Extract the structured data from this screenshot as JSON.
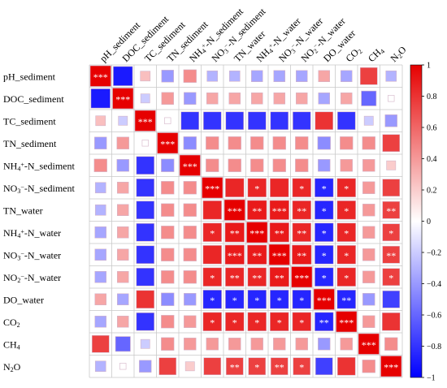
{
  "chart_data": {
    "type": "heatmap",
    "variables": [
      "pH_sediment",
      "DOC_sediment",
      "TC_sediment",
      "TN_sediment",
      "NH4+-N_sediment",
      "NO3−-N_sediment",
      "TN_water",
      "NH4+-N_water",
      "NO3−-N_water",
      "NO2−-N_water",
      "DO_water",
      "CO2",
      "CH4",
      "N2O"
    ],
    "row_labels": [
      [
        {
          "t": "pH_sediment"
        }
      ],
      [
        {
          "t": "DOC_sediment"
        }
      ],
      [
        {
          "t": "TC_sediment"
        }
      ],
      [
        {
          "t": "TN_sediment"
        }
      ],
      [
        {
          "t": "NH"
        },
        {
          "t": "4",
          "sub": true
        },
        {
          "t": "+",
          "sup": true
        },
        {
          "t": "-N_sediment"
        }
      ],
      [
        {
          "t": "NO"
        },
        {
          "t": "3",
          "sub": true
        },
        {
          "t": "−",
          "sup": true
        },
        {
          "t": "-N_sediment"
        }
      ],
      [
        {
          "t": "TN_water"
        }
      ],
      [
        {
          "t": "NH"
        },
        {
          "t": "4",
          "sub": true
        },
        {
          "t": "+",
          "sup": true
        },
        {
          "t": "-N_water"
        }
      ],
      [
        {
          "t": "NO"
        },
        {
          "t": "3",
          "sub": true
        },
        {
          "t": "−",
          "sup": true
        },
        {
          "t": "-N_water"
        }
      ],
      [
        {
          "t": "NO"
        },
        {
          "t": "2",
          "sub": true
        },
        {
          "t": "−",
          "sup": true
        },
        {
          "t": "-N_water"
        }
      ],
      [
        {
          "t": "DO_water"
        }
      ],
      [
        {
          "t": "CO"
        },
        {
          "t": "2",
          "sub": true
        }
      ],
      [
        {
          "t": "CH"
        },
        {
          "t": "4",
          "sub": true
        }
      ],
      [
        {
          "t": "N"
        },
        {
          "t": "2",
          "sub": true
        },
        {
          "t": "O"
        }
      ]
    ],
    "col_labels": [
      [
        {
          "t": "pH_sediment"
        }
      ],
      [
        {
          "t": "DOC_sediment"
        }
      ],
      [
        {
          "t": "TC_sediment"
        }
      ],
      [
        {
          "t": "TN_sediment"
        }
      ],
      [
        {
          "t": "NH"
        },
        {
          "t": "4",
          "sub": true
        },
        {
          "t": "+",
          "sup": true
        },
        {
          "t": "-N_sediment"
        }
      ],
      [
        {
          "t": "NO"
        },
        {
          "t": "3",
          "sub": true
        },
        {
          "t": "−",
          "sup": true
        },
        {
          "t": "-N_sediment"
        }
      ],
      [
        {
          "t": "TN_water"
        }
      ],
      [
        {
          "t": "NH"
        },
        {
          "t": "4",
          "sub": true
        },
        {
          "t": "+",
          "sup": true
        },
        {
          "t": "-N_water"
        }
      ],
      [
        {
          "t": "NO"
        },
        {
          "t": "3",
          "sub": true
        },
        {
          "t": "−",
          "sup": true
        },
        {
          "t": "-N_water"
        }
      ],
      [
        {
          "t": "NO"
        },
        {
          "t": "2",
          "sub": true
        },
        {
          "t": "−",
          "sup": true
        },
        {
          "t": "-N_water"
        }
      ],
      [
        {
          "t": "DO_water"
        }
      ],
      [
        {
          "t": "CO"
        },
        {
          "t": "2",
          "sub": true
        }
      ],
      [
        {
          "t": "CH"
        },
        {
          "t": "4",
          "sub": true
        }
      ],
      [
        {
          "t": "N"
        },
        {
          "t": "2",
          "sub": true
        },
        {
          "t": "O"
        }
      ]
    ],
    "matrix": [
      [
        1.0,
        -0.9,
        0.25,
        -0.4,
        0.45,
        -0.3,
        -0.3,
        -0.35,
        -0.35,
        -0.35,
        0.35,
        -0.35,
        0.75,
        -0.3
      ],
      [
        -0.9,
        1.0,
        -0.2,
        0.4,
        -0.4,
        0.35,
        0.35,
        0.35,
        0.35,
        0.35,
        -0.35,
        0.35,
        -0.6,
        0.0
      ],
      [
        0.25,
        -0.2,
        1.0,
        0.0,
        -0.8,
        -0.8,
        -0.8,
        -0.8,
        -0.8,
        -0.8,
        0.8,
        -0.8,
        -0.2,
        -0.4
      ],
      [
        -0.4,
        0.4,
        0.0,
        1.0,
        -0.45,
        0.45,
        0.45,
        0.45,
        0.45,
        0.45,
        -0.45,
        0.45,
        0.45,
        0.75
      ],
      [
        0.45,
        -0.4,
        -0.8,
        -0.45,
        1.0,
        0.45,
        0.45,
        0.45,
        0.45,
        0.45,
        -0.4,
        0.4,
        0.4,
        0.2
      ],
      [
        -0.3,
        0.35,
        -0.8,
        0.45,
        0.45,
        1.0,
        0.85,
        0.85,
        0.85,
        0.85,
        -0.85,
        0.85,
        0.4,
        0.75
      ],
      [
        -0.3,
        0.35,
        -0.8,
        0.45,
        0.45,
        0.85,
        1.0,
        0.9,
        0.9,
        0.85,
        -0.85,
        0.85,
        0.4,
        0.75
      ],
      [
        -0.35,
        0.35,
        -0.8,
        0.45,
        0.45,
        0.85,
        0.9,
        1.0,
        0.9,
        0.85,
        -0.85,
        0.85,
        0.4,
        0.75
      ],
      [
        -0.35,
        0.35,
        -0.8,
        0.45,
        0.45,
        0.85,
        0.9,
        0.9,
        1.0,
        0.9,
        -0.85,
        0.85,
        0.4,
        0.75
      ],
      [
        -0.35,
        0.35,
        -0.8,
        0.45,
        0.45,
        0.85,
        0.85,
        0.85,
        0.9,
        1.0,
        -0.85,
        0.85,
        0.4,
        0.75
      ],
      [
        0.35,
        -0.35,
        0.8,
        -0.45,
        -0.4,
        -0.85,
        -0.85,
        -0.85,
        -0.85,
        -0.85,
        1.0,
        -0.85,
        -0.4,
        -0.75
      ],
      [
        -0.35,
        0.35,
        -0.8,
        0.45,
        0.4,
        0.85,
        0.85,
        0.85,
        0.85,
        0.85,
        -0.85,
        1.0,
        0.4,
        0.8
      ],
      [
        0.75,
        -0.6,
        -0.2,
        0.45,
        0.4,
        0.4,
        0.4,
        0.4,
        0.4,
        0.4,
        -0.4,
        0.4,
        1.0,
        0.45
      ],
      [
        -0.3,
        0.0,
        -0.4,
        0.75,
        0.2,
        0.75,
        0.75,
        0.75,
        0.75,
        0.75,
        -0.75,
        0.8,
        0.45,
        1.0
      ]
    ],
    "significance": [
      [
        "***",
        "",
        "",
        "",
        "",
        "",
        "",
        "",
        "",
        "",
        "",
        "",
        "",
        ""
      ],
      [
        "",
        "***",
        "",
        "",
        "",
        "",
        "",
        "",
        "",
        "",
        "",
        "",
        "",
        ""
      ],
      [
        "",
        "",
        "***",
        "",
        "",
        "",
        "",
        "",
        "",
        "",
        "",
        "",
        "",
        ""
      ],
      [
        "",
        "",
        "",
        "***",
        "",
        "",
        "",
        "",
        "",
        "",
        "",
        "",
        "",
        ""
      ],
      [
        "",
        "",
        "",
        "",
        "***",
        "",
        "",
        "",
        "",
        "",
        "",
        "",
        "",
        ""
      ],
      [
        "",
        "",
        "",
        "",
        "",
        "***",
        "",
        "*",
        "",
        "*",
        "*",
        "*",
        "",
        ""
      ],
      [
        "",
        "",
        "",
        "",
        "",
        "",
        "***",
        "**",
        "***",
        "**",
        "*",
        "*",
        "",
        "**"
      ],
      [
        "",
        "",
        "",
        "",
        "",
        "*",
        "**",
        "***",
        "**",
        "**",
        "*",
        "*",
        "",
        "*"
      ],
      [
        "",
        "",
        "",
        "",
        "",
        "",
        "***",
        "**",
        "***",
        "**",
        "*",
        "*",
        "",
        "**"
      ],
      [
        "",
        "",
        "",
        "",
        "",
        "*",
        "**",
        "**",
        "**",
        "***",
        "*",
        "*",
        "",
        "*"
      ],
      [
        "",
        "",
        "",
        "",
        "",
        "*",
        "*",
        "*",
        "*",
        "*",
        "***",
        "**",
        "",
        ""
      ],
      [
        "",
        "",
        "",
        "",
        "",
        "*",
        "*",
        "*",
        "*",
        "*",
        "**",
        "***",
        "",
        ""
      ],
      [
        "",
        "",
        "",
        "",
        "",
        "",
        "",
        "",
        "",
        "",
        "",
        "",
        "***",
        ""
      ],
      [
        "",
        "",
        "",
        "",
        "",
        "",
        "**",
        "*",
        "**",
        "*",
        "",
        "",
        "",
        "***"
      ]
    ],
    "colorbar": {
      "min": -1,
      "max": 1,
      "ticks": [
        "1",
        "0.8",
        "0.6",
        "0.4",
        "0.2",
        "0",
        "−0.2",
        "−0.4",
        "−0.6",
        "−0.8",
        "−1"
      ]
    },
    "colors": {
      "negative": "#0000ff",
      "zero": "#ffffff",
      "positive": "#e60000",
      "cell_border": "#d4b4c8",
      "grid": "#c9c9c9"
    },
    "title": "",
    "xlabel": "",
    "ylabel": ""
  }
}
